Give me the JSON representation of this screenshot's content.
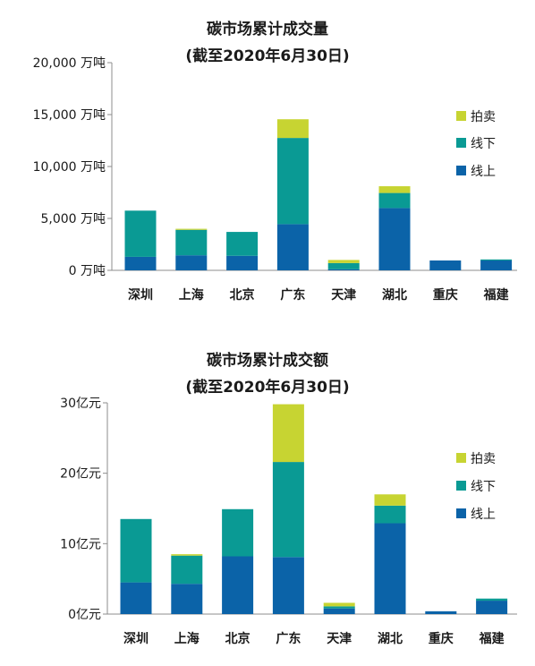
{
  "colors": {
    "online": "#0b63a8",
    "offline": "#0a9a94",
    "auction": "#c7d432"
  },
  "chart_data": [
    {
      "type": "bar",
      "stacked": true,
      "title": "碳市场累计成交量",
      "subtitle": "(截至2020年6月30日)",
      "categories": [
        "深圳",
        "上海",
        "北京",
        "广东",
        "天津",
        "湖北",
        "重庆",
        "福建"
      ],
      "ylim": [
        0,
        20000
      ],
      "yticks": [
        0,
        5000,
        10000,
        15000,
        20000
      ],
      "ytick_labels": [
        "0 万吨",
        "5,000 万吨",
        "10,000 万吨",
        "15,000 万吨",
        "20,000 万吨"
      ],
      "grid": false,
      "legend_position": "right",
      "series": [
        {
          "name": "线上",
          "values": [
            1300,
            1450,
            1400,
            4450,
            100,
            6000,
            950,
            950
          ]
        },
        {
          "name": "线下",
          "values": [
            4450,
            2450,
            2300,
            8300,
            600,
            1450,
            0,
            100
          ]
        },
        {
          "name": "拍卖",
          "values": [
            0,
            100,
            0,
            1800,
            300,
            650,
            0,
            0
          ]
        }
      ]
    },
    {
      "type": "bar",
      "stacked": true,
      "title": "碳市场累计成交额",
      "subtitle": "(截至2020年6月30日)",
      "categories": [
        "深圳",
        "上海",
        "北京",
        "广东",
        "天津",
        "湖北",
        "重庆",
        "福建"
      ],
      "ylim": [
        0,
        30
      ],
      "yticks": [
        0,
        10,
        20,
        30
      ],
      "ytick_labels": [
        "0亿元",
        "10亿元",
        "20亿元",
        "30亿元"
      ],
      "grid": false,
      "legend_position": "right",
      "series": [
        {
          "name": "线上",
          "values": [
            4.5,
            4.3,
            8.2,
            8.1,
            0.8,
            12.9,
            0.4,
            1.9
          ]
        },
        {
          "name": "线下",
          "values": [
            9.0,
            4.0,
            6.7,
            13.5,
            0.3,
            2.5,
            0,
            0.3
          ]
        },
        {
          "name": "拍卖",
          "values": [
            0,
            0.2,
            0,
            8.2,
            0.5,
            1.6,
            0,
            0
          ]
        }
      ]
    }
  ]
}
